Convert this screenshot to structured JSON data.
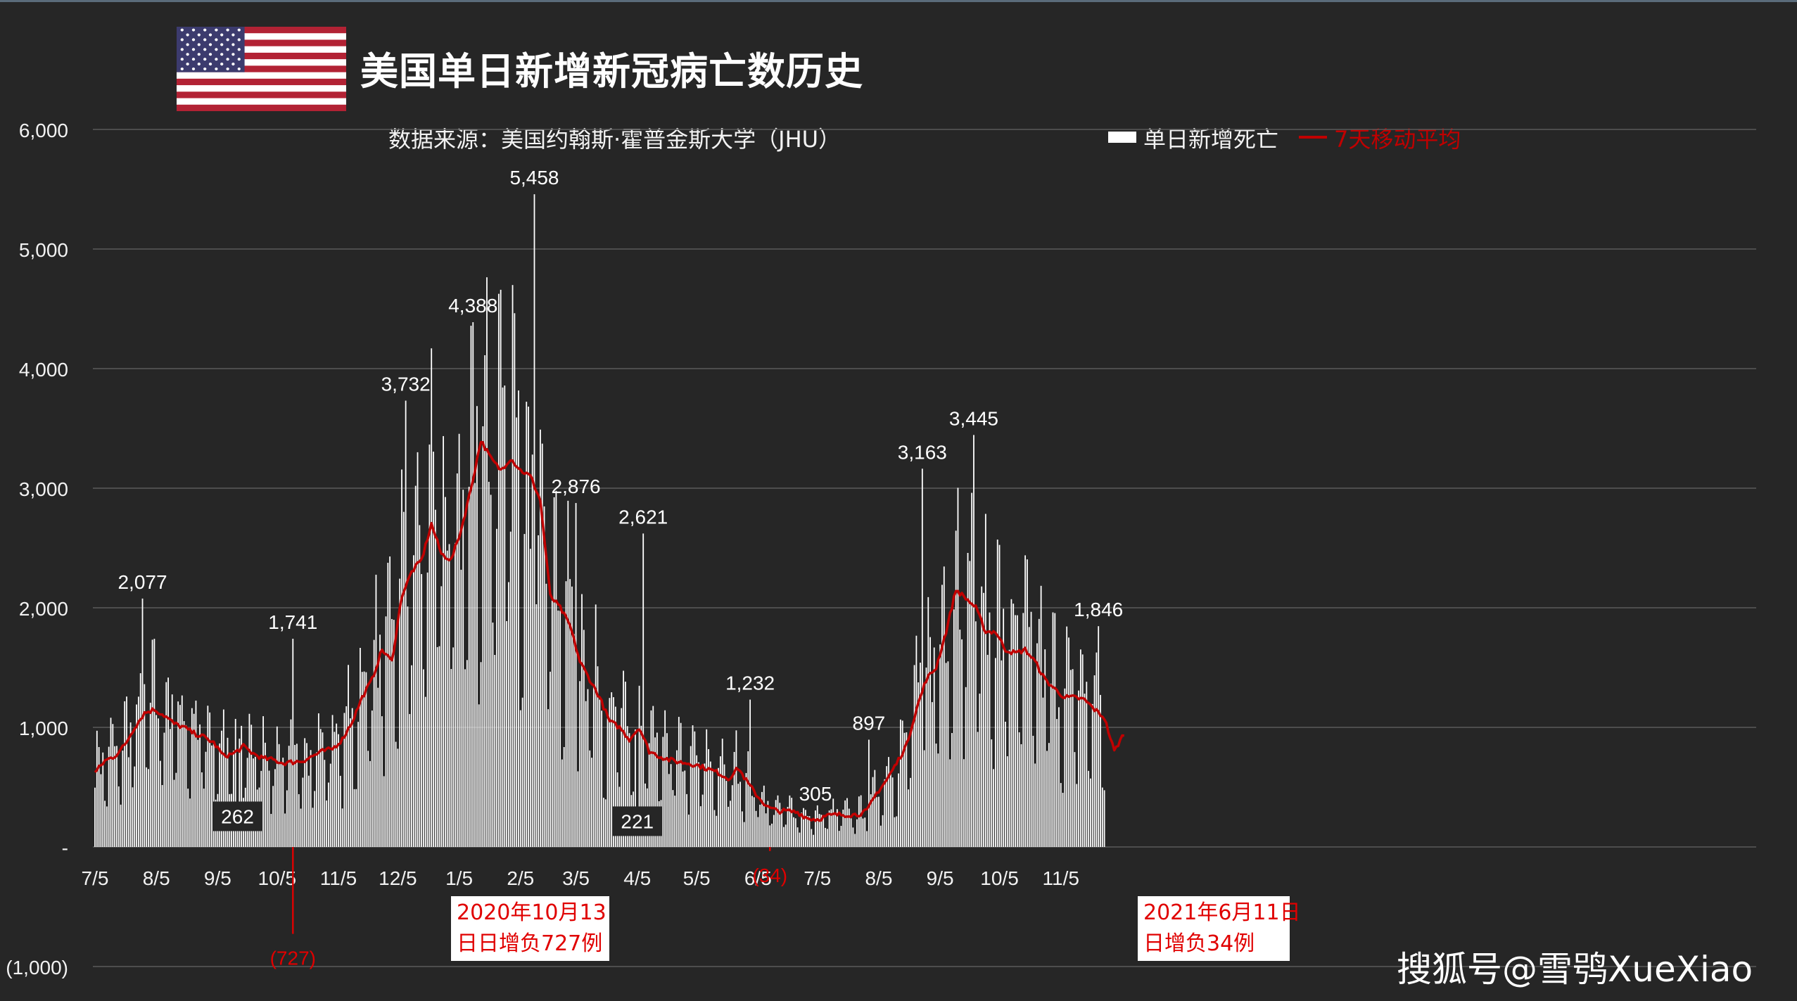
{
  "title": "美国单日新增新冠病亡数历史",
  "source": "数据来源：美国约翰斯·霍普金斯大学（JHU）",
  "legend": {
    "bars": "单日新增死亡",
    "line": "7天移动平均"
  },
  "annotations": {
    "note1": "2020年10月13\n日日增负727例",
    "note2": "2021年6月11日\n日增负34例"
  },
  "watermark": "搜狐号@雪鸮XueXiao",
  "colors": {
    "background": "#262626",
    "bars": "#ffffff",
    "line": "#c00000",
    "note_text": "#e00000",
    "grid": "#5a5a5a"
  },
  "chart_data": {
    "type": "bar",
    "title": "美国单日新增新冠病亡数历史",
    "xlabel": "",
    "ylabel": "",
    "ylim": [
      -1000,
      6000
    ],
    "y_ticks": [
      6000,
      5000,
      4000,
      3000,
      2000,
      1000,
      0,
      -1000
    ],
    "y_tick_labels": [
      "6,000",
      "5,000",
      "4,000",
      "3,000",
      "2,000",
      "1,000",
      "-",
      "(1,000)"
    ],
    "x_tick_labels": [
      "7/5",
      "8/5",
      "9/5",
      "10/5",
      "11/5",
      "12/5",
      "1/5",
      "2/5",
      "3/5",
      "4/5",
      "5/5",
      "6/5",
      "7/5",
      "8/5",
      "9/5",
      "10/5",
      "11/5"
    ],
    "x_tick_days": [
      0,
      31,
      62,
      92,
      123,
      153,
      184,
      215,
      243,
      274,
      304,
      335,
      365,
      396,
      427,
      457,
      488
    ],
    "grid": true,
    "legend_position": "top-right",
    "series": [
      {
        "name": "单日新增死亡",
        "kind": "bar"
      },
      {
        "name": "7天移动平均",
        "kind": "line"
      }
    ],
    "moving_average_anchors": {
      "day": [
        0,
        5,
        10,
        15,
        20,
        25,
        30,
        35,
        40,
        45,
        50,
        55,
        60,
        65,
        70,
        75,
        80,
        85,
        90,
        95,
        100,
        105,
        110,
        115,
        120,
        125,
        130,
        135,
        140,
        145,
        150,
        155,
        160,
        165,
        170,
        175,
        180,
        185,
        190,
        195,
        200,
        205,
        210,
        215,
        220,
        225,
        230,
        235,
        240,
        245,
        250,
        255,
        260,
        265,
        270,
        275,
        280,
        285,
        290,
        295,
        300,
        305,
        310,
        315,
        320,
        325,
        330,
        335,
        340,
        345,
        350,
        355,
        360,
        365,
        370,
        375,
        380,
        385,
        390,
        395,
        400,
        405,
        410,
        415,
        420,
        425,
        430,
        435,
        440,
        445,
        450,
        455,
        460,
        465,
        470,
        475,
        480,
        485,
        490,
        495,
        500,
        505,
        510,
        515,
        520
      ],
      "value": [
        620,
        720,
        760,
        850,
        1000,
        1120,
        1150,
        1100,
        1030,
        1000,
        950,
        920,
        870,
        760,
        780,
        840,
        780,
        740,
        730,
        700,
        710,
        720,
        760,
        800,
        820,
        900,
        1050,
        1250,
        1400,
        1650,
        1550,
        2100,
        2300,
        2400,
        2700,
        2450,
        2400,
        2650,
        3000,
        3400,
        3250,
        3150,
        3250,
        3150,
        3100,
        2900,
        2100,
        2000,
        1850,
        1550,
        1400,
        1250,
        1050,
        1000,
        900,
        1000,
        800,
        760,
        730,
        710,
        700,
        680,
        650,
        620,
        570,
        660,
        530,
        420,
        330,
        300,
        300,
        290,
        240,
        230,
        260,
        270,
        270,
        270,
        300,
        450,
        560,
        700,
        850,
        1150,
        1400,
        1500,
        1800,
        2150,
        2080,
        2000,
        1800,
        1800,
        1650,
        1620,
        1650,
        1550,
        1400,
        1320,
        1250,
        1250,
        1230,
        1150,
        1080,
        800,
        950
      ]
    },
    "labeled_points": [
      {
        "x": "2020-07-29",
        "day": 24,
        "value": 2077,
        "label": "2,077"
      },
      {
        "x": "2020-09-15",
        "day": 72,
        "value": 262,
        "label": "262"
      },
      {
        "x": "2020-10-13",
        "day": 100,
        "value": 1741,
        "label": "1,741"
      },
      {
        "x": "2020-10-13",
        "day": 100,
        "value": -727,
        "label": "(727)"
      },
      {
        "x": "2020-12-09",
        "day": 157,
        "value": 3732,
        "label": "3,732"
      },
      {
        "x": "2021-01-12",
        "day": 191,
        "value": 4388,
        "label": "4,388"
      },
      {
        "x": "2021-02-12",
        "day": 222,
        "value": 5458,
        "label": "5,458"
      },
      {
        "x": "2021-03-05",
        "day": 243,
        "value": 2876,
        "label": "2,876"
      },
      {
        "x": "2021-04-05",
        "day": 274,
        "value": 221,
        "label": "221"
      },
      {
        "x": "2021-04-08",
        "day": 277,
        "value": 2621,
        "label": "2,621"
      },
      {
        "x": "2021-06-01",
        "day": 331,
        "value": 1232,
        "label": "1,232"
      },
      {
        "x": "2021-06-11",
        "day": 341,
        "value": -34,
        "label": "(34)"
      },
      {
        "x": "2021-07-04",
        "day": 364,
        "value": 305,
        "label": "305"
      },
      {
        "x": "2021-07-31",
        "day": 391,
        "value": 897,
        "label": "897"
      },
      {
        "x": "2021-08-27",
        "day": 418,
        "value": 3163,
        "label": "3,163"
      },
      {
        "x": "2021-09-22",
        "day": 444,
        "value": 3445,
        "label": "3,445"
      },
      {
        "x": "2021-11-24",
        "day": 507,
        "value": 1846,
        "label": "1,846"
      }
    ]
  }
}
